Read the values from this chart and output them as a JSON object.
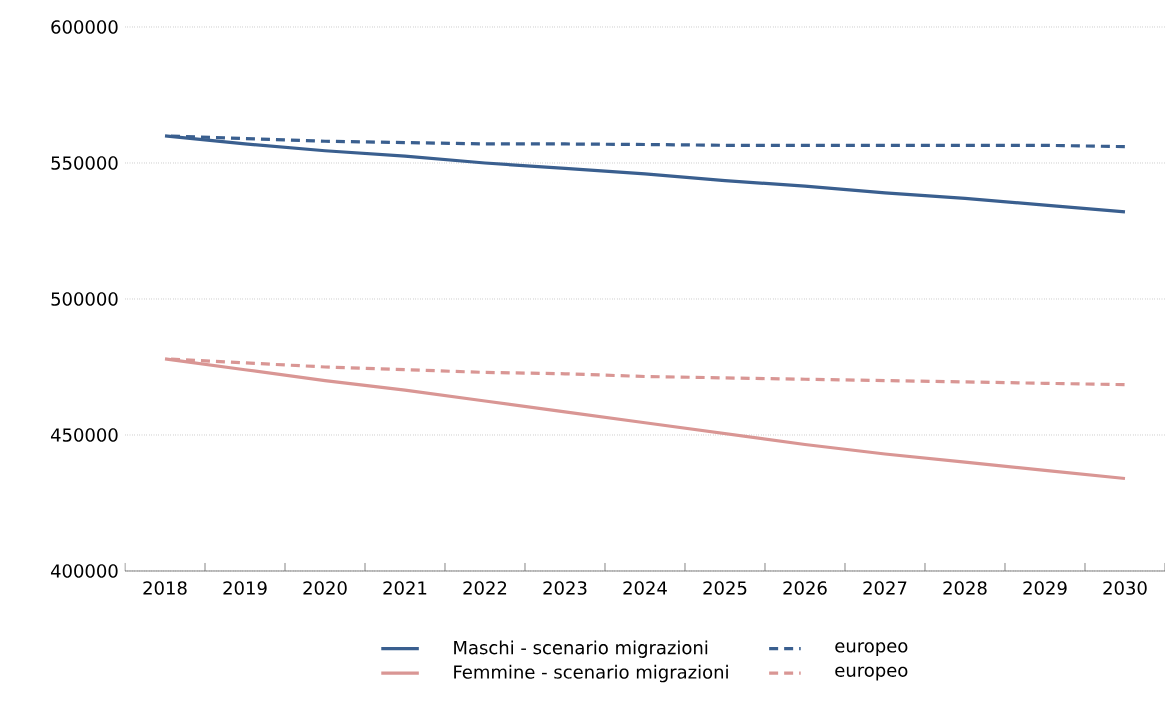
{
  "chart_data": {
    "type": "line",
    "categories": [
      "2018",
      "2019",
      "2020",
      "2021",
      "2022",
      "2023",
      "2024",
      "2025",
      "2026",
      "2027",
      "2028",
      "2029",
      "2030"
    ],
    "series": [
      {
        "name": "Maschi - scenario migrazioni",
        "color": "#3a5f8f",
        "line_style": "solid",
        "values": [
          560000,
          557000,
          554500,
          552500,
          550000,
          548000,
          546000,
          543500,
          541500,
          539000,
          537000,
          534500,
          532000
        ]
      },
      {
        "name": "europeo",
        "color": "#3a5f8f",
        "line_style": "dashed",
        "values": [
          560000,
          559000,
          558000,
          557500,
          557000,
          557000,
          556800,
          556500,
          556500,
          556500,
          556500,
          556500,
          556000
        ]
      },
      {
        "name": "Femmine - scenario migrazioni",
        "color": "#d99694",
        "line_style": "solid",
        "values": [
          478000,
          474000,
          470000,
          466500,
          462500,
          458500,
          454500,
          450500,
          446500,
          443000,
          440000,
          437000,
          434000
        ]
      },
      {
        "name": "europeo",
        "color": "#d99694",
        "line_style": "dashed",
        "values": [
          478000,
          476500,
          475000,
          474000,
          473000,
          472500,
          471500,
          471000,
          470500,
          470000,
          469500,
          469000,
          468500
        ]
      }
    ],
    "ylim": [
      400000,
      600000
    ],
    "yticks": [
      400000,
      450000,
      500000,
      550000,
      600000
    ],
    "grid": "y",
    "legend": "bottom",
    "marker": "none"
  }
}
